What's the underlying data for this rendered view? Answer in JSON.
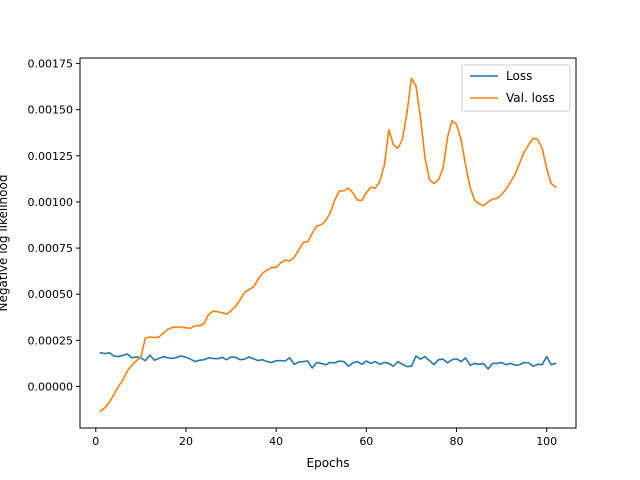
{
  "chart_data": {
    "type": "line",
    "xlabel": "Epochs",
    "ylabel": "Negative log likelihood",
    "xlim": [
      -3.5,
      106.5
    ],
    "ylim": [
      -0.000225,
      0.00178
    ],
    "xticks": [
      0,
      20,
      40,
      60,
      80,
      100
    ],
    "yticks": [
      0,
      0.00025,
      0.0005,
      0.00075,
      0.001,
      0.00125,
      0.0015,
      0.00175
    ],
    "ytick_labels": [
      "0.00000",
      "0.00025",
      "0.00050",
      "0.00075",
      "0.00100",
      "0.00125",
      "0.00150",
      "0.00175"
    ],
    "grid": false,
    "legend_position": "top-right",
    "series": [
      {
        "name": "Loss",
        "color": "#1f77b4",
        "x": [
          1,
          2,
          3,
          4,
          5,
          6,
          7,
          8,
          9,
          10,
          11,
          12,
          13,
          14,
          15,
          16,
          17,
          18,
          19,
          20,
          21,
          22,
          23,
          24,
          25,
          26,
          27,
          28,
          29,
          30,
          31,
          32,
          33,
          34,
          35,
          36,
          37,
          38,
          39,
          40,
          41,
          42,
          43,
          44,
          45,
          46,
          47,
          48,
          49,
          50,
          51,
          52,
          53,
          54,
          55,
          56,
          57,
          58,
          59,
          60,
          61,
          62,
          63,
          64,
          65,
          66,
          67,
          68,
          69,
          70,
          71,
          72,
          73,
          74,
          75,
          76,
          77,
          78,
          79,
          80,
          81,
          82,
          83,
          84,
          85,
          86,
          87,
          88,
          89,
          90,
          91,
          92,
          93,
          94,
          95,
          96,
          97,
          98,
          99,
          100,
          101,
          102
        ],
        "values": [
          0.000183,
          0.000178,
          0.000183,
          0.000165,
          0.000162,
          0.000168,
          0.000176,
          0.000155,
          0.00016,
          0.000155,
          0.00014,
          0.00017,
          0.000142,
          0.000152,
          0.000162,
          0.000155,
          0.000152,
          0.000158,
          0.000165,
          0.000158,
          0.000148,
          0.000135,
          0.000142,
          0.000145,
          0.000155,
          0.000152,
          0.00015,
          0.000158,
          0.000145,
          0.00016,
          0.000158,
          0.000145,
          0.000148,
          0.00016,
          0.00015,
          0.00014,
          0.000145,
          0.000135,
          0.00013,
          0.00014,
          0.00014,
          0.000138,
          0.000155,
          0.00012,
          0.000132,
          0.000135,
          0.000138,
          0.0001,
          0.00013,
          0.000125,
          0.000118,
          0.00013,
          0.000128,
          0.000138,
          0.000135,
          0.00011,
          0.000128,
          0.000135,
          0.00012,
          0.000138,
          0.000125,
          0.000135,
          0.00012,
          0.00013,
          0.000125,
          0.00011,
          0.000135,
          0.00012,
          0.000108,
          0.00011,
          0.000165,
          0.000148,
          0.000162,
          0.00014,
          0.000118,
          0.000145,
          0.000148,
          0.000128,
          0.000145,
          0.00015,
          0.000135,
          0.000155,
          0.000115,
          0.000125,
          0.00012,
          0.000125,
          9.5e-05,
          0.000125,
          0.000125,
          0.00013,
          0.000118,
          0.000125,
          0.000115,
          0.000118,
          0.00013,
          0.000128,
          0.00011,
          0.00012,
          0.000118,
          0.000162,
          0.000118,
          0.000125
        ]
      },
      {
        "name": "Val. loss",
        "color": "#ff7f0e",
        "x": [
          1,
          2,
          3,
          4,
          5,
          6,
          7,
          8,
          9,
          10,
          11,
          12,
          13,
          14,
          15,
          16,
          17,
          18,
          19,
          20,
          21,
          22,
          23,
          24,
          25,
          26,
          27,
          28,
          29,
          30,
          31,
          32,
          33,
          34,
          35,
          36,
          37,
          38,
          39,
          40,
          41,
          42,
          43,
          44,
          45,
          46,
          47,
          48,
          49,
          50,
          51,
          52,
          53,
          54,
          55,
          56,
          57,
          58,
          59,
          60,
          61,
          62,
          63,
          64,
          65,
          66,
          67,
          68,
          69,
          70,
          71,
          72,
          73,
          74,
          75,
          76,
          77,
          78,
          79,
          80,
          81,
          82,
          83,
          84,
          85,
          86,
          87,
          88,
          89,
          90,
          91,
          92,
          93,
          94,
          95,
          96,
          97,
          98,
          99,
          100,
          101,
          102
        ],
        "values": [
          -0.000135,
          -0.000115,
          -8.5e-05,
          -4.5e-05,
          0.0,
          3.5e-05,
          8.5e-05,
          0.000115,
          0.00014,
          0.00016,
          0.000262,
          0.000268,
          0.000265,
          0.000268,
          0.00029,
          0.00031,
          0.00032,
          0.000322,
          0.000322,
          0.000318,
          0.000315,
          0.000328,
          0.00033,
          0.00034,
          0.00039,
          0.000408,
          0.000405,
          0.0004,
          0.000392,
          0.00041,
          0.000435,
          0.00047,
          0.00051,
          0.000525,
          0.00054,
          0.00058,
          0.000615,
          0.00063,
          0.000645,
          0.000645,
          0.00067,
          0.000685,
          0.00068,
          0.0007,
          0.00074,
          0.00078,
          0.000785,
          0.00083,
          0.00087,
          0.000875,
          0.0009,
          0.00094,
          0.00101,
          0.00106,
          0.00106,
          0.001075,
          0.00105,
          0.00101,
          0.001008,
          0.00105,
          0.00108,
          0.001075,
          0.00111,
          0.0012,
          0.00139,
          0.00131,
          0.00129,
          0.00134,
          0.00148,
          0.00167,
          0.00163,
          0.00146,
          0.00124,
          0.00112,
          0.0011,
          0.00112,
          0.00118,
          0.00135,
          0.00144,
          0.00142,
          0.00134,
          0.0012,
          0.00108,
          0.00101,
          0.00099,
          0.00098,
          0.001,
          0.001015,
          0.00102,
          0.00104,
          0.00107,
          0.00111,
          0.00115,
          0.00121,
          0.00127,
          0.00131,
          0.001345,
          0.00134,
          0.00129,
          0.00118,
          0.0011,
          0.00108
        ]
      }
    ]
  }
}
